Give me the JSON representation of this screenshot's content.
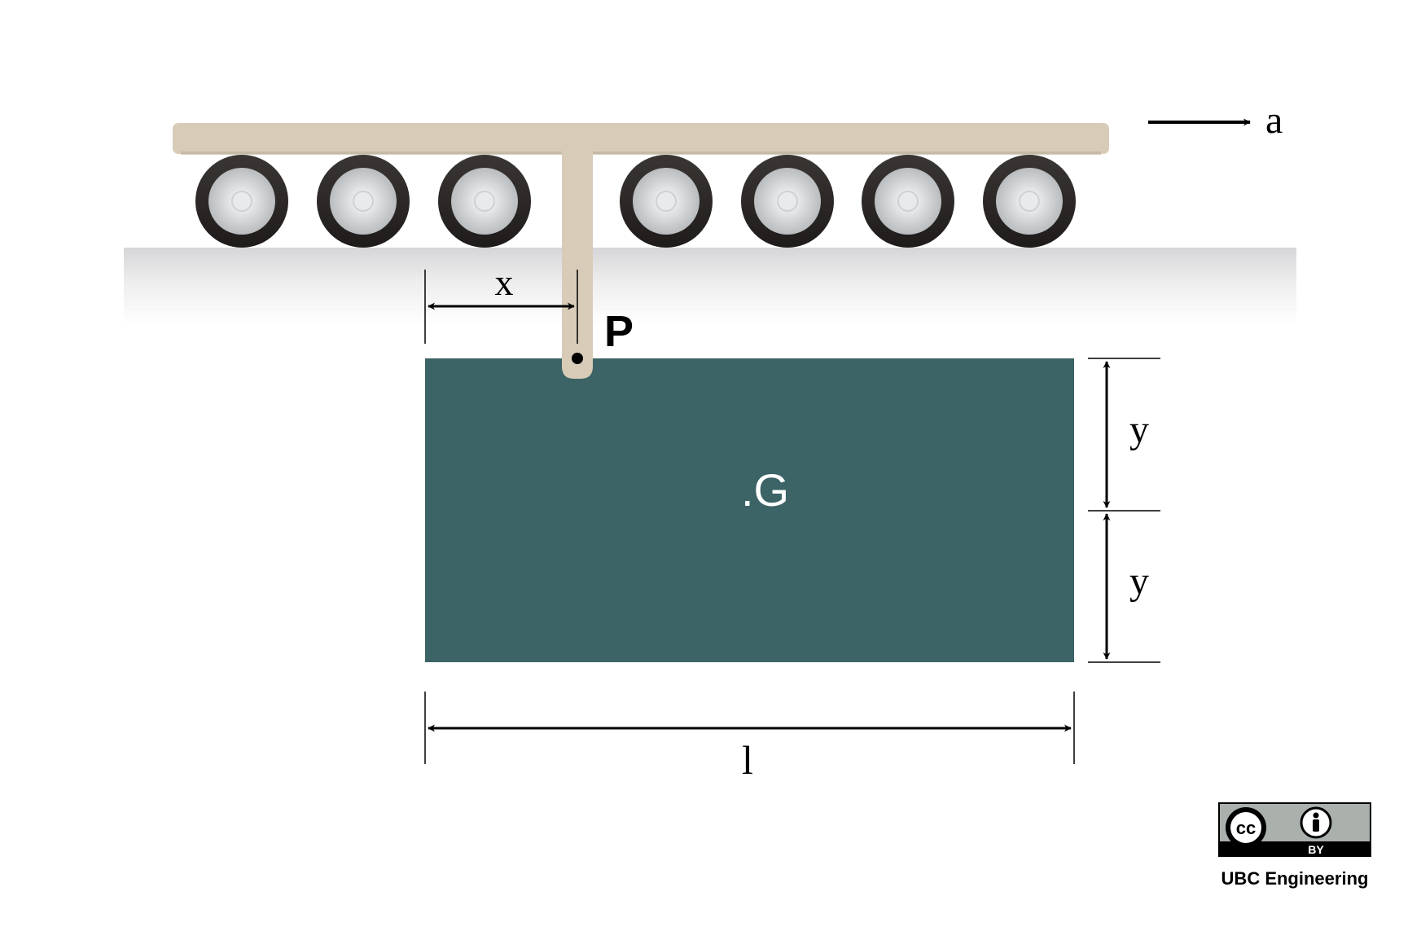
{
  "labels": {
    "acceleration": "a",
    "pivot": "P",
    "center_of_mass": ".G",
    "offset_x": "x",
    "half_height_top": "y",
    "half_height_bottom": "y",
    "length": "l"
  },
  "license": {
    "cc": "cc",
    "by": "BY",
    "attribution": "UBC Engineering"
  },
  "colors": {
    "cart": "#d8ccb8",
    "plate": "#3c6366",
    "wheel_tire": "#2a2725",
    "ground_top": "#d9d9db",
    "ink": "#000000",
    "license_badge": "#aab0ab"
  }
}
